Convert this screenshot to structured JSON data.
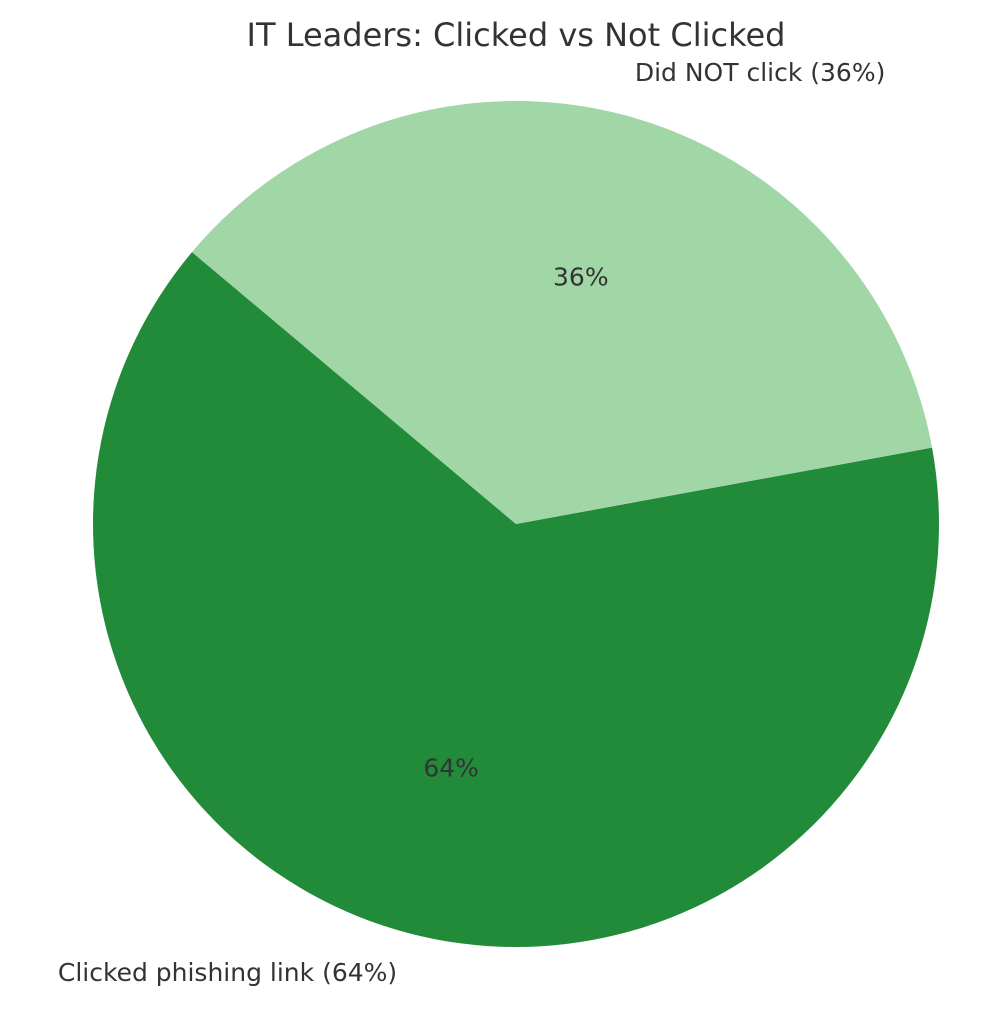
{
  "chart_data": {
    "type": "pie",
    "title": "IT Leaders: Clicked vs Not Clicked",
    "slices": [
      {
        "label": "Clicked phishing link (64%)",
        "value": 64,
        "pct_label": "64%",
        "color": "#228b3a"
      },
      {
        "label": "Did NOT click (36%)",
        "value": 36,
        "pct_label": "36%",
        "color": "#a1d6a6"
      }
    ]
  }
}
